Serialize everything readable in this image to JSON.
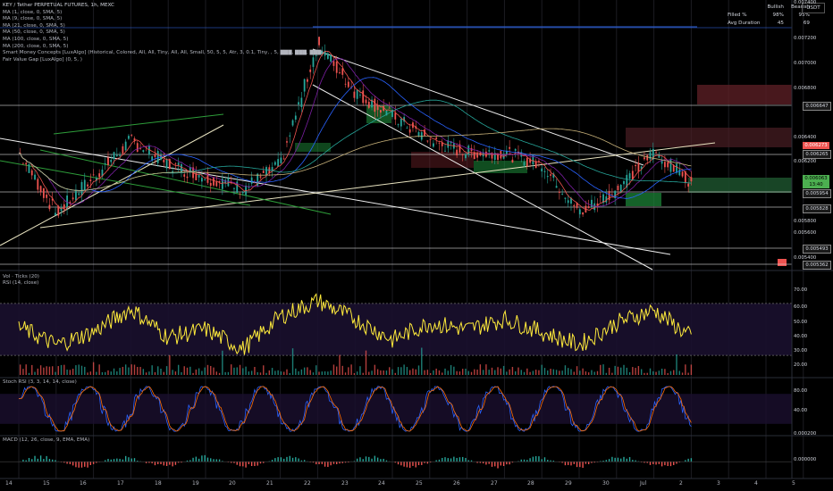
{
  "legend": {
    "symbol": "KEY / Tether PERPETUAL FUTURES, 1h, MEXC",
    "indicators": [
      "MA (1, close, 0, SMA, 5)",
      "MA (9, close, 0, SMA, 5)",
      "MA (21, close, 0, SMA, 5)",
      "MA (50, close, 0, SMA, 5)",
      "MA (100, close, 0, SMA, 5)",
      "MA (200, close, 0, SMA, 5)",
      "Smart Money Concepts [LuxAlgo] (Historical, Colored, All, All, Tiny, All, All, Small, 50, 5, 5, Atr, 3, 0.1, Tiny, , 5, ▇▇▇, ▇▇▇, ▇▇▇)",
      "Fair Value Gap [LuxAlgo] (0, 5, )"
    ]
  },
  "stats": {
    "headers": [
      "",
      "Bullish",
      "Bearish"
    ],
    "rows": [
      {
        "label": "Filled %",
        "bullish": "98%",
        "bearish": "95%"
      },
      {
        "label": "Avg Duration",
        "bullish": "45",
        "bearish": "69"
      }
    ]
  },
  "currency": "USDT",
  "colors": {
    "up": "#26a69a",
    "down": "#ef5350",
    "rsi": "#ffeb3b",
    "ma_long": "#c8b27a",
    "price_tag": "#4caf50"
  },
  "price_axis": {
    "ticks": [
      "0.007400",
      "0.007200",
      "0.007000",
      "0.006800",
      "0.006400",
      "0.006200",
      "0.005800",
      "0.005600",
      "0.005400"
    ],
    "tags": [
      {
        "value": "0.006647",
        "kind": "line"
      },
      {
        "value": "0.006273",
        "kind": "red"
      },
      {
        "value": "0.006265",
        "kind": "line"
      },
      {
        "value": "0.006063",
        "kind": "green"
      },
      {
        "value": "13:40",
        "kind": "green"
      },
      {
        "value": "0.005954",
        "kind": "line"
      },
      {
        "value": "0.005828",
        "kind": "line"
      },
      {
        "value": "0.005493",
        "kind": "line"
      },
      {
        "value": "0.005362",
        "kind": "line"
      }
    ]
  },
  "time_axis": [
    "14",
    "15",
    "16",
    "17",
    "18",
    "19",
    "20",
    "21",
    "22",
    "23",
    "24",
    "25",
    "26",
    "27",
    "28",
    "29",
    "30",
    "Jul",
    "2",
    "3",
    "4",
    "5"
  ],
  "chart_data": [
    {
      "type": "candlestick",
      "title": "KEY / Tether PERPETUAL FUTURES, 1h, MEXC",
      "x_range": [
        "14",
        "5"
      ],
      "ylim": [
        0.00535,
        0.0075
      ],
      "close_path": {
        "x": [
          "14",
          "15",
          "16",
          "17",
          "18",
          "19",
          "20",
          "21",
          "22",
          "23",
          "24",
          "25",
          "26",
          "27",
          "28",
          "29",
          "30",
          "Jul",
          "2"
        ],
        "y": [
          0.0063,
          0.0058,
          0.0061,
          0.0064,
          0.0062,
          0.0061,
          0.006,
          0.0062,
          0.0072,
          0.0068,
          0.0066,
          0.0064,
          0.0063,
          0.0063,
          0.0062,
          0.0058,
          0.006,
          0.0063,
          0.00606
        ]
      },
      "last_price": 0.006063
    },
    {
      "type": "line",
      "title": "RSI (14, close)",
      "ylim": [
        15,
        85
      ],
      "yticks": [
        "70.00",
        "60.00",
        "50.00",
        "40.00",
        "30.00",
        "20.00"
      ],
      "x": [
        "14",
        "15",
        "16",
        "17",
        "18",
        "19",
        "20",
        "21",
        "22",
        "23",
        "24",
        "25",
        "26",
        "27",
        "28",
        "29",
        "30",
        "Jul",
        "2"
      ],
      "values": [
        52,
        38,
        48,
        66,
        44,
        50,
        35,
        60,
        72,
        58,
        42,
        55,
        50,
        58,
        48,
        38,
        55,
        65,
        44
      ],
      "secondary_title": "Vol · Ticks (20)"
    },
    {
      "type": "line",
      "title": "Stoch RSI (3, 3, 14, 14, close)",
      "ylim": [
        0,
        100
      ],
      "yticks": [
        "80.00",
        "40.00"
      ],
      "series": [
        {
          "values": [
            80,
            20,
            70,
            90,
            30,
            60,
            15,
            85,
            95,
            40,
            10,
            75,
            30,
            80,
            50,
            10,
            70,
            90,
            20
          ]
        },
        {
          "values": [
            70,
            30,
            60,
            85,
            40,
            55,
            25,
            75,
            90,
            50,
            20,
            65,
            40,
            70,
            55,
            20,
            60,
            85,
            30
          ]
        }
      ]
    },
    {
      "type": "bar",
      "title": "MACD (12, 26, close, 9, EMA, EMA)",
      "yticks": [
        "0.000200",
        "0.000000"
      ],
      "ylim": [
        -0.00015,
        0.00025
      ]
    }
  ]
}
